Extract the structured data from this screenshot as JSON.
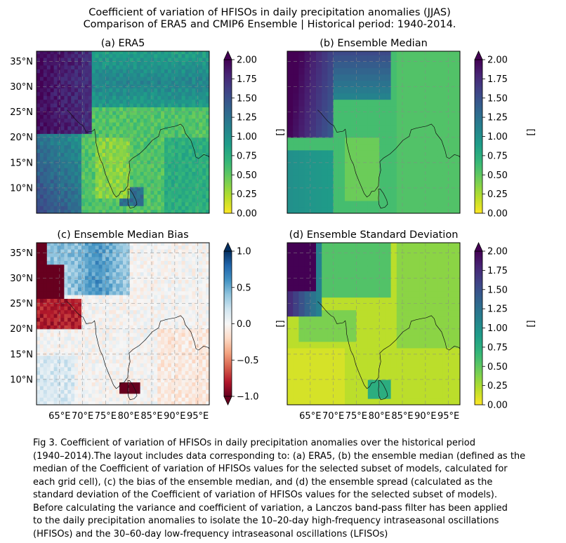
{
  "figure": {
    "title_line1": "Coefficient of variation of HFISOs in daily precipitation anomalies (JJAS)",
    "title_line2": "Comparison of ERA5 and CMIP6 Ensemble | Historical period: 1940-2014.",
    "caption": [
      "Fig 3. Coefficient of variation of HFISOs in daily precipitation anomalies over the historical period",
      "(1940–2014).The layout includes data corresponding to: (a) ERA5, (b) the ensemble median (defined as the",
      "median of the Coefficient of variation of HFISOs values for the selected subset of models, calculated for",
      "each grid cell), (c) the bias of the ensemble median, and (d) the ensemble spread (calculated as the",
      "standard deviation of the Coefficient of variation of HFISOs values for the selected subset of models).",
      "Before calculating the variance and coefficient of variation, a Lanczos band-pass filter has been applied",
      "to the daily precipitation anomalies to isolate the 10–20-day high-frequency intraseasonal oscillations",
      "(HFISOs) and the 30–60-day low-frequency intraseasonal oscillations (LFISOs)"
    ]
  },
  "chart_data": [
    {
      "type": "heatmap",
      "title": "(a) ERA5",
      "colormap": "viridis_r",
      "colorbar_label": "[]",
      "colorbar_ticks": [
        "0.00",
        "0.25",
        "0.50",
        "0.75",
        "1.00",
        "1.25",
        "1.50",
        "1.75",
        "2.00"
      ],
      "colorbar_range": [
        0,
        2
      ],
      "extend": "max",
      "lat_ticks": [
        "35°N",
        "30°N",
        "25°N",
        "20°N",
        "15°N",
        "10°N"
      ],
      "lon_ticks": [],
      "extent": {
        "lon": [
          60,
          97.5
        ],
        "lat": [
          5,
          37
        ]
      },
      "grid": true,
      "style": "blocky"
    },
    {
      "type": "heatmap",
      "title": "(b) Ensemble Median",
      "colormap": "viridis_r",
      "colorbar_label": "[]",
      "colorbar_ticks": [
        "0.00",
        "0.25",
        "0.50",
        "0.75",
        "1.00",
        "1.25",
        "1.50",
        "1.75",
        "2.00"
      ],
      "colorbar_range": [
        0,
        2
      ],
      "extend": "max",
      "lat_ticks": [],
      "lon_ticks": [],
      "extent": {
        "lon": [
          60,
          97.5
        ],
        "lat": [
          5,
          37
        ]
      },
      "grid": true,
      "style": "smooth"
    },
    {
      "type": "heatmap",
      "title": "(c) Ensemble Median Bias",
      "colormap": "RdBu",
      "colorbar_label": "[]",
      "colorbar_ticks": [
        "1.0",
        "0.5",
        "0.0",
        "−0.5",
        "−1.0"
      ],
      "colorbar_range": [
        -1,
        1
      ],
      "extend": "both",
      "lat_ticks": [
        "35°N",
        "30°N",
        "25°N",
        "20°N",
        "15°N",
        "10°N"
      ],
      "lon_ticks": [
        "65°E",
        "70°E",
        "75°E",
        "80°E",
        "85°E",
        "90°E",
        "95°E"
      ],
      "extent": {
        "lon": [
          60,
          97.5
        ],
        "lat": [
          5,
          37
        ]
      },
      "grid": true,
      "style": "blocky"
    },
    {
      "type": "heatmap",
      "title": "(d) Ensemble Standard Deviation",
      "colormap": "viridis_r",
      "colorbar_label": "[]",
      "colorbar_ticks": [
        "0.00",
        "0.25",
        "0.50",
        "0.75",
        "1.00",
        "1.25",
        "1.50",
        "1.75",
        "2.00"
      ],
      "colorbar_range": [
        0,
        2
      ],
      "extend": "max",
      "lat_ticks": [],
      "lon_ticks": [
        "65°E",
        "70°E",
        "75°E",
        "80°E",
        "85°E",
        "90°E",
        "95°E"
      ],
      "extent": {
        "lon": [
          60,
          97.5
        ],
        "lat": [
          5,
          37
        ]
      },
      "grid": true,
      "style": "smooth"
    }
  ]
}
